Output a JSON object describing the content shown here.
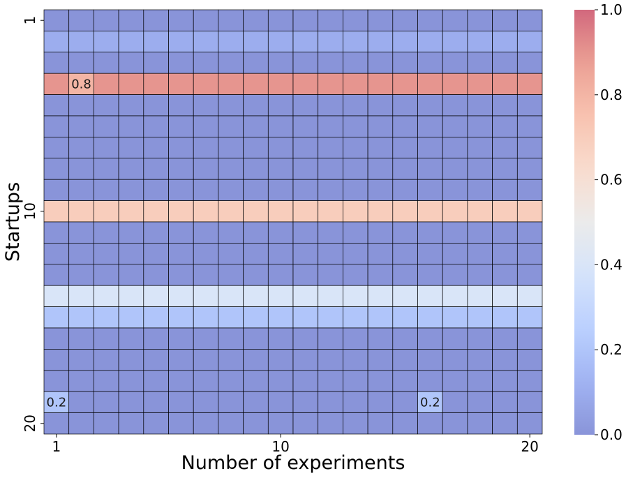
{
  "chart_data": {
    "type": "heatmap",
    "xlabel": "Number of experiments",
    "ylabel": "Startups",
    "x_tick_labels": [
      {
        "index": 1,
        "label": "1"
      },
      {
        "index": 10,
        "label": "10"
      },
      {
        "index": 20,
        "label": "20"
      }
    ],
    "y_tick_labels": [
      {
        "index": 1,
        "label": "1"
      },
      {
        "index": 10,
        "label": "10"
      },
      {
        "index": 20,
        "label": "20"
      }
    ],
    "n_columns": 20,
    "n_rows": 20,
    "row_values": [
      0.0,
      0.1,
      0.0,
      0.9,
      0.0,
      0.0,
      0.0,
      0.0,
      0.0,
      0.7,
      0.0,
      0.0,
      0.0,
      0.4,
      0.2,
      0.0,
      0.0,
      0.0,
      0.0,
      0.0
    ],
    "overrides": [
      {
        "row": 4,
        "col": 2,
        "value": 0.8
      },
      {
        "row": 19,
        "col": 1,
        "value": 0.2
      },
      {
        "row": 19,
        "col": 16,
        "value": 0.2
      }
    ],
    "annotations": [
      {
        "row": 4,
        "col": 2,
        "text": "0.8"
      },
      {
        "row": 19,
        "col": 1,
        "text": "0.2"
      },
      {
        "row": 19,
        "col": 16,
        "text": "0.2"
      }
    ],
    "colormap": "coolwarm",
    "cell_alpha": 0.6,
    "colorbar": {
      "range": [
        0.0,
        1.0
      ],
      "ticks": [
        "0.0",
        "0.2",
        "0.4",
        "0.6",
        "0.8",
        "1.0"
      ]
    },
    "grid": true,
    "grid_color": "#000000"
  }
}
